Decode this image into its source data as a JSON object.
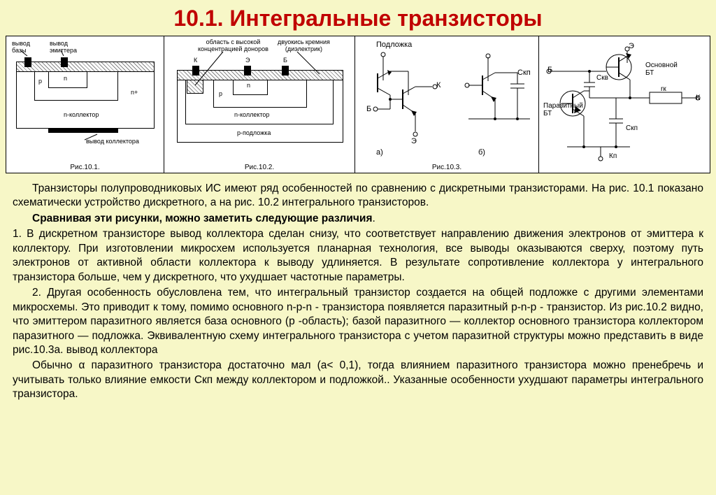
{
  "title": "10.1. Интегральные транзисторы",
  "figures": {
    "fig1": {
      "caption": "Рис.10.1.",
      "labels": {
        "base_lead": "вывод\nбазы",
        "emitter_lead": "вывод\nэмиттера",
        "p": "p",
        "n": "n",
        "n_plus": "n+",
        "n_collector": "n-коллектор",
        "collector_lead": "вывод коллектора"
      }
    },
    "fig2": {
      "caption": "Рис.10.2.",
      "labels": {
        "donor_region": "область с высокой\nконцентрацией доноров",
        "dielectric": "двуокись кремния\n(диэлектрик)",
        "K": "К",
        "E": "Э",
        "B": "Б",
        "p": "p",
        "n": "n",
        "n_collector": "n-коллектор",
        "p_substrate": "p-подложка"
      }
    },
    "fig3": {
      "caption": "Рис.10.3.",
      "labels": {
        "substrate": "Подложка",
        "K": "К",
        "B": "Б",
        "E": "Э",
        "a": "а)",
        "b": "б)",
        "Ckp": "Cкп"
      }
    },
    "fig4": {
      "labels": {
        "E": "Э",
        "B": "Б",
        "K": "К",
        "main_bt": "Основной\nБТ",
        "parasitic_bt": "Паразитный\nБТ",
        "CkB": "Cкв",
        "rk": "rк",
        "Ckp": "Cкп",
        "Kp": "Кп"
      }
    }
  },
  "paragraphs": {
    "p1": "Транзисторы полупроводниковых ИС имеют ряд особенностей по сравнению с дискретными транзисторами. На рис. 10.1 показано схематически устройство дискретного, а на рис. 10.2 интегрального транзисторов.",
    "p2_bold": "Сравнивая эти рисунки, можно заметить следующие различия",
    "p2_tail": ".",
    "p3": "1. В дискретном транзисторе вывод коллектора сделан снизу, что соответствует направлению движения электронов от эмиттера к коллектору. При изготовлении микросхем используется планарная технология, все выводы оказываются сверху, поэтому путь электронов от активной области коллектора к выводу удлиняется. В результате сопротивление коллектора у интегрального транзистора больше, чем у дискретного, что ухудшает частотные параметры.",
    "p4": "2. Другая особенность обусловлена тем, что интегральный транзистор создается на общей подложке с другими элементами микросхемы. Это приводит к тому, помимо основного n-p-n - транзистора появляется паразитный p-n-p - транзистор. Из рис.10.2 видно, что эмиттером паразитного является база основного (p -область); базой паразитного — коллектор основного транзистора коллектором паразитного — подложка. Эквивалентную схему интегрального транзистора с учетом паразитной структуры можно представить в виде рис.10.3а.         вывод коллектора",
    "p5": "Обычно α паразитного транзистора достаточно мал (а< 0,1), тогда влиянием паразитного транзистора можно пренебречь и учитывать только влияние емкости Скп между коллектором и подложкой.. Указанные особенности ухудшают параметры интегрального транзистора."
  },
  "colors": {
    "bg": "#f7f7c7",
    "title": "#c00000",
    "fig_bg": "#ffffff",
    "line": "#000000"
  }
}
